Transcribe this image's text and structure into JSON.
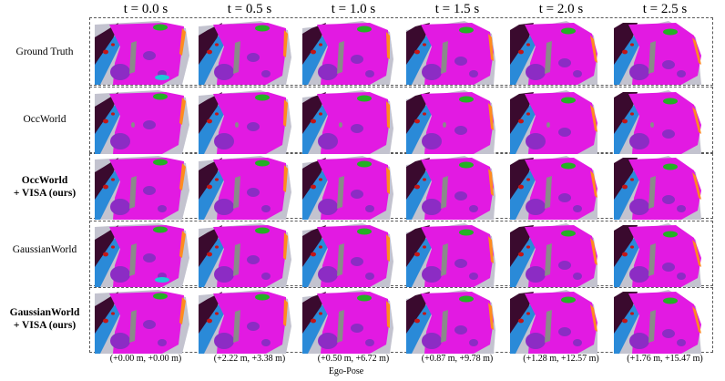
{
  "time_headers": [
    "t = 0.0 s",
    "t = 0.5 s",
    "t = 1.0 s",
    "t = 1.5 s",
    "t = 2.0 s",
    "t = 2.5 s"
  ],
  "methods": [
    {
      "lines": [
        "Ground Truth"
      ],
      "bold": false
    },
    {
      "lines": [
        "OccWorld"
      ],
      "bold": false
    },
    {
      "lines": [
        "OccWorld",
        "+ VISA (ours)"
      ],
      "bold": true
    },
    {
      "lines": [
        "GaussianWorld"
      ],
      "bold": false
    },
    {
      "lines": [
        "GaussianWorld",
        "+ VISA (ours)"
      ],
      "bold": true
    }
  ],
  "ego_poses": [
    "(+0.00 m, +0.00 m)",
    "(+2.22 m, +3.38 m)",
    "(+0.50 m, +6.72 m)",
    "(+0.87 m, +9.78 m)",
    "(+1.28 m, +12.57 m)",
    "(+1.76 m, +15.47 m)"
  ],
  "ego_pose_label": "Ego-Pose",
  "colors": {
    "drivable_surface": "#e21ae2",
    "sidewalk": "#8c2cc4",
    "terrain": "#c3c3cf",
    "manmade": "#3a0a2e",
    "vegetation": "#24b024",
    "vehicle": "#ff8c1e",
    "barrier": "#c21616",
    "pedestrian": "#8a8a8a",
    "water_cyan": "#1ec8d8",
    "sidewalk_blue": "#2a8ad8",
    "border": "#5a5a5a"
  }
}
